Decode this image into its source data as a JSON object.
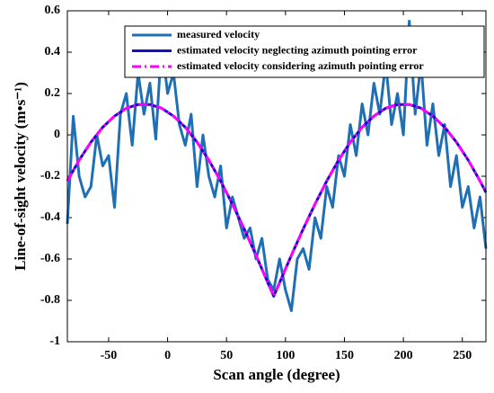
{
  "chart_data": {
    "type": "line",
    "xlabel": "Scan angle (degree)",
    "ylabel": "Line-of-sight velocity (m•s⁻¹)",
    "xlim": [
      -85,
      270
    ],
    "ylim": [
      -1,
      0.6
    ],
    "xticks": [
      -50,
      0,
      50,
      100,
      150,
      200,
      250
    ],
    "yticks": [
      0.6,
      0.4,
      0.2,
      0,
      -0.2,
      -0.4,
      -0.6,
      -0.8,
      -1
    ],
    "legend": "upper right",
    "series": [
      {
        "name": "measured velocity",
        "color": "#1f6fb5",
        "style": "solid",
        "x": [
          -85,
          -80,
          -75,
          -70,
          -65,
          -60,
          -55,
          -50,
          -45,
          -40,
          -35,
          -30,
          -25,
          -20,
          -15,
          -10,
          -5,
          0,
          5,
          10,
          15,
          20,
          25,
          30,
          35,
          40,
          45,
          50,
          55,
          60,
          65,
          70,
          75,
          80,
          85,
          90,
          95,
          100,
          105,
          110,
          115,
          120,
          125,
          130,
          135,
          140,
          145,
          150,
          155,
          160,
          165,
          170,
          175,
          180,
          185,
          190,
          195,
          200,
          205,
          210,
          215,
          220,
          225,
          230,
          235,
          240,
          245,
          250,
          255,
          260,
          265,
          270
        ],
        "values": [
          -0.43,
          0.09,
          -0.2,
          -0.3,
          -0.25,
          0.0,
          -0.15,
          -0.1,
          -0.35,
          0.1,
          0.2,
          -0.05,
          0.3,
          0.1,
          0.25,
          -0.02,
          0.45,
          0.2,
          0.3,
          0.05,
          -0.05,
          0.1,
          -0.25,
          0.0,
          -0.2,
          -0.3,
          -0.15,
          -0.45,
          -0.3,
          -0.4,
          -0.5,
          -0.45,
          -0.6,
          -0.5,
          -0.7,
          -0.75,
          -0.6,
          -0.75,
          -0.85,
          -0.6,
          -0.55,
          -0.65,
          -0.4,
          -0.5,
          -0.25,
          -0.35,
          -0.1,
          -0.2,
          0.05,
          -0.1,
          0.15,
          0.0,
          0.25,
          0.1,
          0.35,
          0.05,
          0.2,
          0.0,
          0.55,
          0.1,
          0.35,
          -0.05,
          0.15,
          -0.1,
          0.05,
          -0.25,
          -0.1,
          -0.35,
          -0.25,
          -0.45,
          -0.3,
          -0.55
        ]
      },
      {
        "name": "estimated velocity neglecting azimuth pointing error",
        "color": "#1010c8",
        "style": "solid",
        "x": [
          -85,
          -75,
          -65,
          -55,
          -45,
          -35,
          -25,
          -15,
          -5,
          5,
          15,
          25,
          35,
          45,
          55,
          65,
          75,
          85,
          90,
          95,
          105,
          115,
          125,
          135,
          145,
          155,
          165,
          175,
          185,
          195,
          205,
          215,
          225,
          235,
          245,
          255,
          265,
          270
        ],
        "values": [
          -0.223,
          -0.122,
          -0.035,
          0.037,
          0.091,
          0.129,
          0.147,
          0.147,
          0.129,
          0.091,
          0.037,
          -0.035,
          -0.122,
          -0.223,
          -0.335,
          -0.455,
          -0.582,
          -0.714,
          -0.78,
          -0.714,
          -0.582,
          -0.455,
          -0.335,
          -0.223,
          -0.122,
          -0.035,
          0.037,
          0.091,
          0.129,
          0.147,
          0.147,
          0.129,
          0.091,
          0.037,
          -0.035,
          -0.122,
          -0.223,
          -0.278
        ]
      },
      {
        "name": "estimated velocity considering azimuth pointing error",
        "color": "#ff00ff",
        "style": "dashdot",
        "x": [
          -85,
          -75,
          -65,
          -55,
          -45,
          -35,
          -25,
          -15,
          -5,
          5,
          15,
          25,
          35,
          45,
          55,
          65,
          75,
          85,
          90,
          95,
          105,
          115,
          125,
          135,
          145,
          155,
          165,
          175,
          185,
          195,
          205,
          215,
          225,
          235,
          245,
          255,
          265,
          270
        ],
        "values": [
          -0.223,
          -0.122,
          -0.035,
          0.037,
          0.091,
          0.129,
          0.147,
          0.147,
          0.129,
          0.091,
          0.037,
          -0.035,
          -0.122,
          -0.223,
          -0.335,
          -0.455,
          -0.582,
          -0.714,
          -0.78,
          -0.714,
          -0.582,
          -0.455,
          -0.335,
          -0.223,
          -0.122,
          -0.035,
          0.037,
          0.091,
          0.129,
          0.147,
          0.147,
          0.129,
          0.091,
          0.037,
          -0.035,
          -0.122,
          -0.223,
          -0.278
        ]
      }
    ]
  }
}
